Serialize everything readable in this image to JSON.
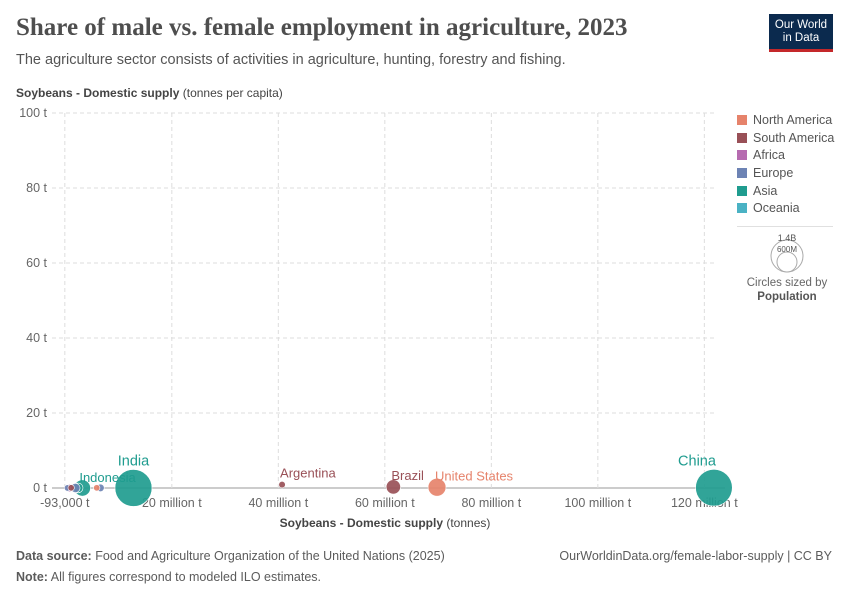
{
  "header": {
    "title": "Share of male vs. female employment in agriculture, 2023",
    "subtitle": "The agriculture sector consists of activities in agriculture, hunting, forestry and fishing.",
    "logo_line1": "Our World",
    "logo_line2": "in Data"
  },
  "axes": {
    "y_title_bold": "Soybeans - Domestic supply",
    "y_title_unit": "(tonnes per capita)",
    "x_title_bold": "Soybeans - Domestic supply",
    "x_title_unit": "(tonnes)"
  },
  "legend": {
    "items": [
      {
        "label": "North America",
        "color": "#e6836b"
      },
      {
        "label": "South America",
        "color": "#995057"
      },
      {
        "label": "Africa",
        "color": "#b66bb0"
      },
      {
        "label": "Europe",
        "color": "#6d83b4"
      },
      {
        "label": "Asia",
        "color": "#1f9c8f"
      },
      {
        "label": "Oceania",
        "color": "#4ab2c4"
      }
    ],
    "size_value_large": "1.4B",
    "size_value_small": "600M",
    "size_caption": "Circles sized by",
    "size_variable": "Population"
  },
  "footer": {
    "source_label": "Data source:",
    "source_text": "Food and Agriculture Organization of the United Nations (2025)",
    "note_label": "Note:",
    "note_text": "All figures correspond to modeled ILO estimates.",
    "url": "OurWorldinData.org/female-labor-supply | CC BY"
  },
  "chart_data": {
    "type": "scatter",
    "xlim": [
      -2500000,
      122000000
    ],
    "ylim": [
      0,
      100
    ],
    "x_ticks": [
      {
        "value": -93000,
        "label": "-93,000 t"
      },
      {
        "value": 20000000,
        "label": "20 million t"
      },
      {
        "value": 40000000,
        "label": "40 million t"
      },
      {
        "value": 60000000,
        "label": "60 million t"
      },
      {
        "value": 80000000,
        "label": "80 million t"
      },
      {
        "value": 100000000,
        "label": "100 million t"
      },
      {
        "value": 120000000,
        "label": "120 million t"
      }
    ],
    "y_ticks": [
      {
        "value": 0,
        "label": "0 t"
      },
      {
        "value": 20,
        "label": "20 t"
      },
      {
        "value": 40,
        "label": "40 t"
      },
      {
        "value": 60,
        "label": "60 t"
      },
      {
        "value": 80,
        "label": "80 t"
      },
      {
        "value": 100,
        "label": "100 t"
      }
    ],
    "grid": true,
    "size_variable": "Population",
    "points": [
      {
        "name": "China",
        "region": "Asia",
        "x": 121800000,
        "y": 0.09,
        "population": 1410000000,
        "label": "China"
      },
      {
        "name": "India",
        "region": "Asia",
        "x": 12800000,
        "y": 0.01,
        "population": 1430000000,
        "label": "India"
      },
      {
        "name": "United States",
        "region": "North America",
        "x": 69800000,
        "y": 0.2,
        "population": 335000000,
        "label": "United States"
      },
      {
        "name": "Brazil",
        "region": "South America",
        "x": 61600000,
        "y": 0.29,
        "population": 216000000,
        "label": "Brazil"
      },
      {
        "name": "Argentina",
        "region": "South America",
        "x": 40700000,
        "y": 0.9,
        "population": 46000000,
        "label": "Argentina"
      },
      {
        "name": "Indonesia",
        "region": "Asia",
        "x": 3200000,
        "y": 0.01,
        "population": 278000000,
        "label": "Indonesia"
      },
      {
        "name": "",
        "region": "Europe",
        "x": 400000,
        "y": 0.02,
        "population": 40000000,
        "label": ""
      },
      {
        "name": "",
        "region": "South America",
        "x": 1100000,
        "y": 0.05,
        "population": 30000000,
        "label": ""
      },
      {
        "name": "",
        "region": "Africa",
        "x": 800000,
        "y": 0.01,
        "population": 60000000,
        "label": ""
      },
      {
        "name": "",
        "region": "Europe",
        "x": 1900000,
        "y": 0.01,
        "population": 90000000,
        "label": ""
      },
      {
        "name": "",
        "region": "Asia",
        "x": 2400000,
        "y": 0.02,
        "population": 100000000,
        "label": ""
      },
      {
        "name": "",
        "region": "North America",
        "x": 5900000,
        "y": 0.05,
        "population": 39000000,
        "label": ""
      },
      {
        "name": "",
        "region": "Europe",
        "x": 6600000,
        "y": 0.04,
        "population": 60000000,
        "label": ""
      }
    ]
  }
}
